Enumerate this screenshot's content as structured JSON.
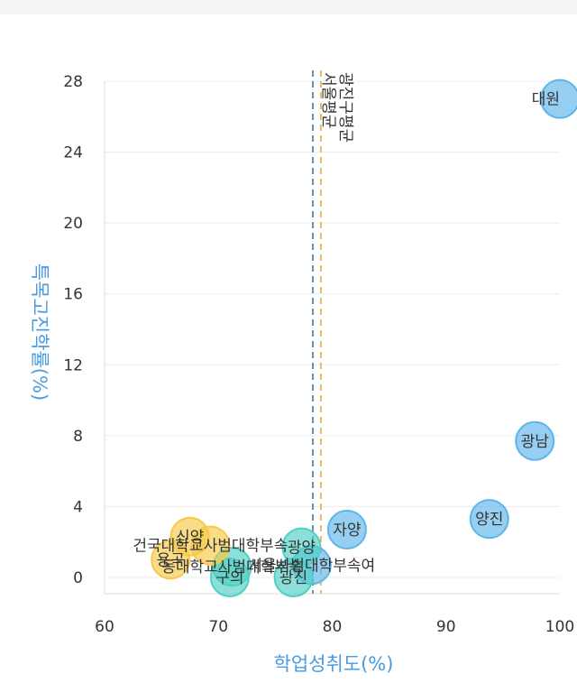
{
  "chart_data": {
    "type": "scatter",
    "xlabel": "학업성취도(%)",
    "ylabel": "특목고진학률(%)",
    "xlim": [
      60,
      100
    ],
    "ylim": [
      0,
      28
    ],
    "x_ticks": [
      "60",
      "70",
      "80",
      "90",
      "100"
    ],
    "y_ticks": [
      "0",
      "4",
      "8",
      "12",
      "16",
      "20",
      "24",
      "28"
    ],
    "grid": true,
    "reference_lines": [
      {
        "x": 78.3,
        "label": "서울평균",
        "color": "#6a8fb0"
      },
      {
        "x": 79.0,
        "label": "광진구평균",
        "color": "#f2b55a"
      }
    ],
    "points": [
      {
        "label": "대원",
        "x": 100,
        "y": 27,
        "color": "#5db6ea"
      },
      {
        "label": "광남",
        "x": 97.8,
        "y": 7.7,
        "color": "#5db6ea"
      },
      {
        "label": "양진",
        "x": 93.8,
        "y": 3.3,
        "color": "#5db6ea"
      },
      {
        "label": "자양",
        "x": 81.3,
        "y": 2.7,
        "color": "#5db6ea"
      },
      {
        "label": "서울사범대학부속여",
        "x": 78.2,
        "y": 0.7,
        "color": "#5db6ea"
      },
      {
        "label": "광양",
        "x": 77.3,
        "y": 1.7,
        "color": "#4fd0c4"
      },
      {
        "label": "광진",
        "x": 76.6,
        "y": 0.0,
        "color": "#4fd0c4"
      },
      {
        "label": "구의",
        "x": 71.0,
        "y": 0.0,
        "color": "#4fd0c4"
      },
      {
        "label": "동대학교사범대학부속",
        "x": 71.2,
        "y": 0.6,
        "color": "#4fd0c4"
      },
      {
        "label": "신양",
        "x": 67.5,
        "y": 2.3,
        "color": "#f7c948"
      },
      {
        "label": "건국대학교사범대학부속",
        "x": 69.3,
        "y": 1.8,
        "color": "#f7c948"
      },
      {
        "label": "용곡",
        "x": 65.8,
        "y": 1.0,
        "color": "#f7c948"
      }
    ]
  }
}
